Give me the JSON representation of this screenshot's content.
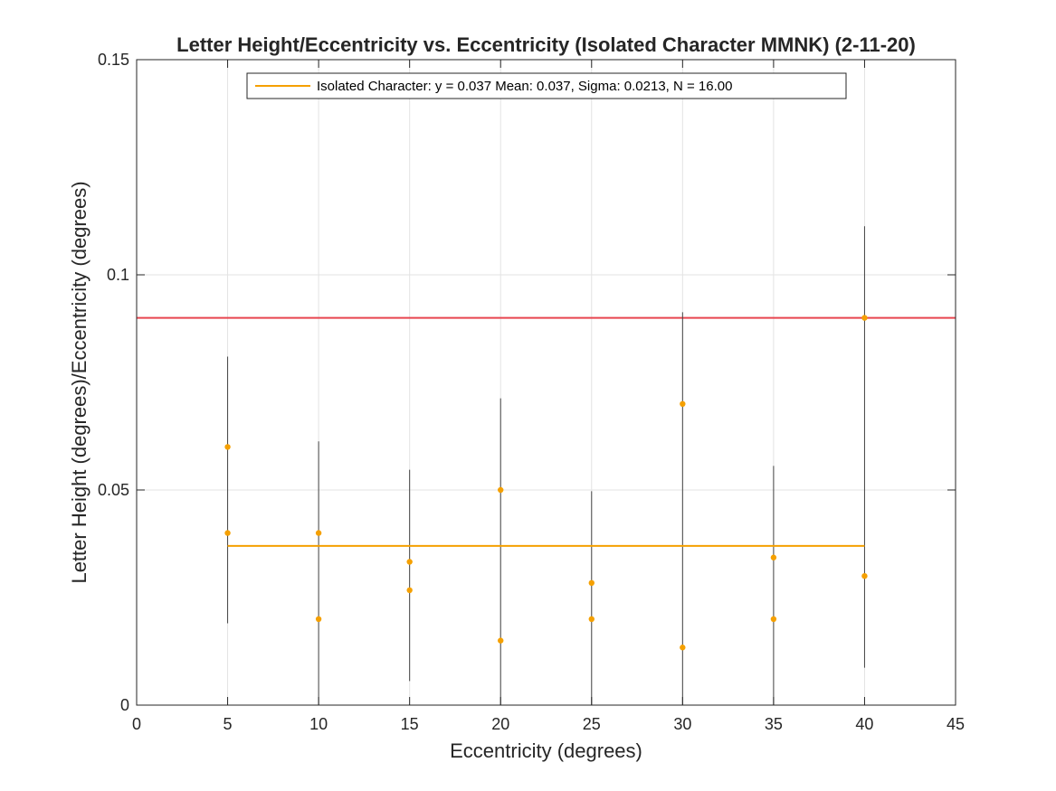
{
  "chart_data": {
    "type": "scatter",
    "title": "Letter Height/Eccentricity vs. Eccentricity (Isolated Character MMNK) (2-11-20)",
    "xlabel": "Eccentricity (degrees)",
    "ylabel": "Letter Height (degrees)/Eccentricity (degrees)",
    "xlim": [
      0,
      45
    ],
    "ylim": [
      0,
      0.15
    ],
    "xticks": [
      0,
      5,
      10,
      15,
      20,
      25,
      30,
      35,
      40,
      45
    ],
    "xtick_labels": [
      "0",
      "5",
      "10",
      "15",
      "20",
      "25",
      "30",
      "35",
      "40",
      "45"
    ],
    "yticks": [
      0,
      0.05,
      0.1,
      0.15
    ],
    "ytick_labels": [
      "0",
      "0.05",
      "0.1",
      "0.15"
    ],
    "grid": true,
    "legend": {
      "placement": "top-center",
      "entries": [
        "Isolated Character: y = 0.037 Mean: 0.037, Sigma: 0.0213, N = 16.00"
      ]
    },
    "colors": {
      "points": "#f5a000",
      "mean_line": "#f5a000",
      "reference_line": "#e8454f",
      "error_bars": "#444444",
      "grid": "#e3e3e3"
    },
    "series": [
      {
        "name": "Isolated Character: y = 0.037 Mean: 0.037, Sigma: 0.0213, N = 16.00",
        "x": [
          5,
          5,
          10,
          10,
          15,
          15,
          20,
          20,
          25,
          25,
          30,
          30,
          35,
          35,
          40,
          40
        ],
        "y": [
          0.06,
          0.04,
          0.04,
          0.02,
          0.0333,
          0.0267,
          0.05,
          0.015,
          0.0284,
          0.02,
          0.07,
          0.0134,
          0.0343,
          0.02,
          0.09,
          0.03
        ]
      }
    ],
    "error_bars": [
      {
        "x": 5,
        "low": 0.019,
        "high": 0.081
      },
      {
        "x": 10,
        "low": 0.0,
        "high": 0.0613
      },
      {
        "x": 15,
        "low": 0.0056,
        "high": 0.0547
      },
      {
        "x": 20,
        "low": 0.0,
        "high": 0.0713
      },
      {
        "x": 25,
        "low": 0.0,
        "high": 0.0497
      },
      {
        "x": 30,
        "low": 0.0,
        "high": 0.0913
      },
      {
        "x": 35,
        "low": 0.0,
        "high": 0.0556
      },
      {
        "x": 40,
        "low": 0.0087,
        "high": 0.1113
      }
    ],
    "mean_line": {
      "x_start": 5,
      "x_end": 40,
      "y": 0.037
    },
    "reference_line": {
      "y": 0.09
    }
  }
}
